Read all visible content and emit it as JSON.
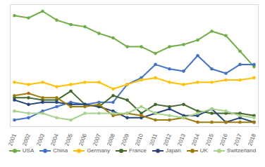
{
  "chart_data": {
    "type": "line",
    "categories": [
      "2001",
      "2002",
      "2003",
      "2004",
      "2005",
      "2006",
      "2007",
      "2008",
      "2009",
      "2010",
      "2011",
      "2012",
      "2013",
      "2014",
      "2015",
      "2016",
      "2017",
      "2018"
    ],
    "series": [
      {
        "name": "USA",
        "color": "#70ad47",
        "values": [
          50,
          49,
          52,
          48,
          46,
          45,
          42,
          40,
          36,
          36,
          33,
          36,
          37,
          39,
          43,
          41,
          34,
          27
        ]
      },
      {
        "name": "China",
        "color": "#4472c4",
        "values": [
          3,
          4,
          7,
          9,
          11,
          10,
          11,
          11,
          19,
          22,
          28,
          26,
          25,
          32,
          26,
          24,
          28,
          28
        ]
      },
      {
        "name": "Germany",
        "color": "#ffc000",
        "values": [
          20,
          19,
          20,
          18,
          19,
          20,
          20,
          17,
          19,
          21,
          22,
          20,
          19,
          20,
          20,
          21,
          21,
          22
        ]
      },
      {
        "name": "France",
        "color": "#43682b",
        "values": [
          13,
          13,
          12,
          12,
          16,
          10,
          9,
          14,
          12,
          6,
          10,
          9,
          10,
          7,
          6,
          6,
          6,
          5
        ]
      },
      {
        "name": "Japan",
        "color": "#264478",
        "values": [
          12,
          10,
          11,
          11,
          10,
          10,
          9,
          7,
          4,
          4,
          6,
          8,
          5,
          5,
          8,
          2,
          4,
          2
        ]
      },
      {
        "name": "UK",
        "color": "#9e7c0c",
        "values": [
          14,
          15,
          13,
          13,
          9,
          9,
          10,
          5,
          6,
          5,
          3,
          3,
          4,
          2,
          2,
          2,
          2,
          2
        ]
      },
      {
        "name": "Switzerland",
        "color": "#a9d18e",
        "values": [
          7,
          6,
          6,
          4,
          3,
          6,
          6,
          6,
          6,
          9,
          6,
          5,
          4,
          6,
          8,
          7,
          5,
          4
        ]
      }
    ],
    "ylim": [
      0,
      55
    ],
    "yticks": [],
    "tick_labels": "x",
    "marker": "circle",
    "grid": false,
    "legend": "bottom"
  }
}
